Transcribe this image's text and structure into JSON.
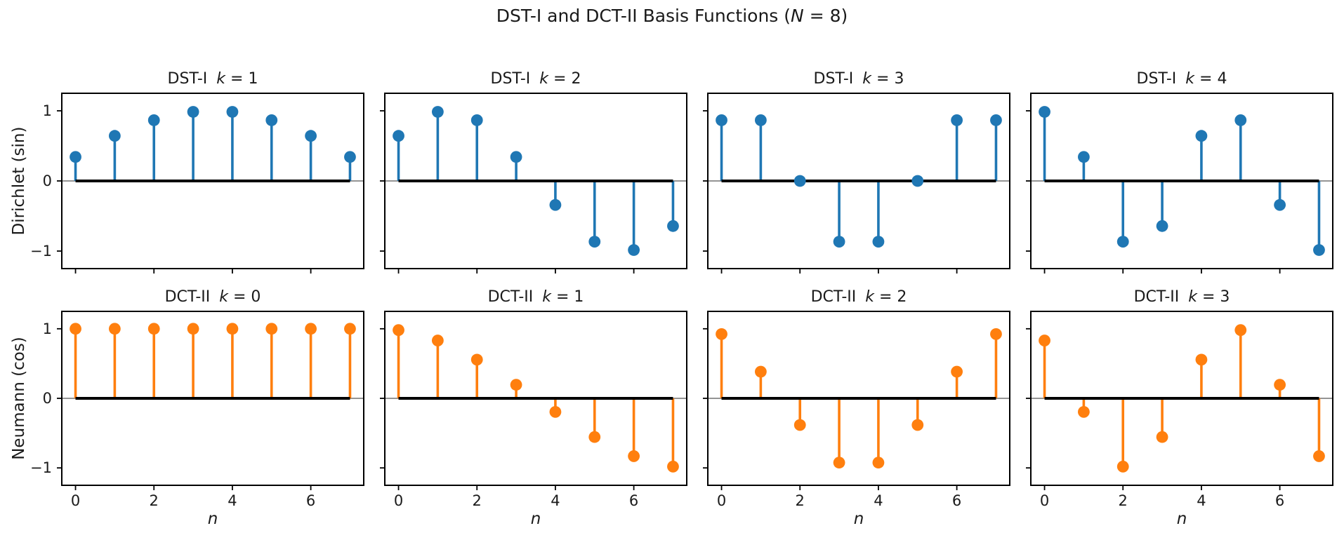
{
  "figure": {
    "suptitle": "DST-I and DCT-II Basis Functions (N = 8)",
    "suptitle_pre": "DST-I and DCT-II Basis Functions (",
    "suptitle_var": "N",
    "suptitle_post": " = 8)",
    "background": "#ffffff",
    "text_color": "#1a1a1a"
  },
  "rows": [
    {
      "ylabel": "Dirichlet (sin)",
      "color": "#1f77b4"
    },
    {
      "ylabel": "Neumann (cos)",
      "color": "#ff7f0e"
    }
  ],
  "xlabel": "n",
  "chart_data": [
    {
      "type": "stem",
      "title": "DST-I  k = 1",
      "title_prefix": "DST-I ",
      "title_var": "k",
      "title_suffix": " = 1",
      "x": [
        0,
        1,
        2,
        3,
        4,
        5,
        6,
        7
      ],
      "values": [
        0.342,
        0.643,
        0.866,
        0.985,
        0.985,
        0.866,
        0.643,
        0.342
      ],
      "color": "#1f77b4",
      "baseline_color": "#000000",
      "xlim": [
        -0.35,
        7.35
      ],
      "ylim": [
        -1.25,
        1.25
      ],
      "xticks": [
        0,
        2,
        4,
        6
      ],
      "yticks": [
        1,
        0,
        -1
      ],
      "xtick_labels": [],
      "ytick_labels": [
        "1",
        "0",
        "−1"
      ],
      "grid": false
    },
    {
      "type": "stem",
      "title": "DST-I  k = 2",
      "title_prefix": "DST-I ",
      "title_var": "k",
      "title_suffix": " = 2",
      "x": [
        0,
        1,
        2,
        3,
        4,
        5,
        6,
        7
      ],
      "values": [
        0.643,
        0.985,
        0.866,
        0.342,
        -0.342,
        -0.866,
        -0.985,
        -0.643
      ],
      "color": "#1f77b4",
      "baseline_color": "#000000",
      "xlim": [
        -0.35,
        7.35
      ],
      "ylim": [
        -1.25,
        1.25
      ],
      "xticks": [
        0,
        2,
        4,
        6
      ],
      "yticks": [
        1,
        0,
        -1
      ],
      "xtick_labels": [],
      "ytick_labels": [],
      "grid": false
    },
    {
      "type": "stem",
      "title": "DST-I  k = 3",
      "title_prefix": "DST-I ",
      "title_var": "k",
      "title_suffix": " = 3",
      "x": [
        0,
        1,
        2,
        3,
        4,
        5,
        6,
        7
      ],
      "values": [
        0.866,
        0.866,
        0.0,
        -0.866,
        -0.866,
        0.0,
        0.866,
        0.866
      ],
      "color": "#1f77b4",
      "baseline_color": "#000000",
      "xlim": [
        -0.35,
        7.35
      ],
      "ylim": [
        -1.25,
        1.25
      ],
      "xticks": [
        0,
        2,
        4,
        6
      ],
      "yticks": [
        1,
        0,
        -1
      ],
      "xtick_labels": [],
      "ytick_labels": [],
      "grid": false
    },
    {
      "type": "stem",
      "title": "DST-I  k = 4",
      "title_prefix": "DST-I ",
      "title_var": "k",
      "title_suffix": " = 4",
      "x": [
        0,
        1,
        2,
        3,
        4,
        5,
        6,
        7
      ],
      "values": [
        0.985,
        0.342,
        -0.866,
        -0.643,
        0.643,
        0.866,
        -0.342,
        -0.985
      ],
      "color": "#1f77b4",
      "baseline_color": "#000000",
      "xlim": [
        -0.35,
        7.35
      ],
      "ylim": [
        -1.25,
        1.25
      ],
      "xticks": [
        0,
        2,
        4,
        6
      ],
      "yticks": [
        1,
        0,
        -1
      ],
      "xtick_labels": [],
      "ytick_labels": [],
      "grid": false
    },
    {
      "type": "stem",
      "title": "DCT-II  k = 0",
      "title_prefix": "DCT-II ",
      "title_var": "k",
      "title_suffix": " = 0",
      "x": [
        0,
        1,
        2,
        3,
        4,
        5,
        6,
        7
      ],
      "values": [
        1.0,
        1.0,
        1.0,
        1.0,
        1.0,
        1.0,
        1.0,
        1.0
      ],
      "color": "#ff7f0e",
      "baseline_color": "#000000",
      "xlim": [
        -0.35,
        7.35
      ],
      "ylim": [
        -1.25,
        1.25
      ],
      "xticks": [
        0,
        2,
        4,
        6
      ],
      "yticks": [
        1,
        0,
        -1
      ],
      "xtick_labels": [
        "0",
        "2",
        "4",
        "6"
      ],
      "ytick_labels": [
        "1",
        "0",
        "−1"
      ],
      "grid": false
    },
    {
      "type": "stem",
      "title": "DCT-II  k = 1",
      "title_prefix": "DCT-II ",
      "title_var": "k",
      "title_suffix": " = 1",
      "x": [
        0,
        1,
        2,
        3,
        4,
        5,
        6,
        7
      ],
      "values": [
        0.981,
        0.831,
        0.556,
        0.195,
        -0.195,
        -0.556,
        -0.831,
        -0.981
      ],
      "color": "#ff7f0e",
      "baseline_color": "#000000",
      "xlim": [
        -0.35,
        7.35
      ],
      "ylim": [
        -1.25,
        1.25
      ],
      "xticks": [
        0,
        2,
        4,
        6
      ],
      "yticks": [
        1,
        0,
        -1
      ],
      "xtick_labels": [
        "0",
        "2",
        "4",
        "6"
      ],
      "ytick_labels": [],
      "grid": false
    },
    {
      "type": "stem",
      "title": "DCT-II  k = 2",
      "title_prefix": "DCT-II ",
      "title_var": "k",
      "title_suffix": " = 2",
      "x": [
        0,
        1,
        2,
        3,
        4,
        5,
        6,
        7
      ],
      "values": [
        0.924,
        0.383,
        -0.383,
        -0.924,
        -0.924,
        -0.383,
        0.383,
        0.924
      ],
      "color": "#ff7f0e",
      "baseline_color": "#000000",
      "xlim": [
        -0.35,
        7.35
      ],
      "ylim": [
        -1.25,
        1.25
      ],
      "xticks": [
        0,
        2,
        4,
        6
      ],
      "yticks": [
        1,
        0,
        -1
      ],
      "xtick_labels": [
        "0",
        "2",
        "4",
        "6"
      ],
      "ytick_labels": [],
      "grid": false
    },
    {
      "type": "stem",
      "title": "DCT-II  k = 3",
      "title_prefix": "DCT-II ",
      "title_var": "k",
      "title_suffix": " = 3",
      "x": [
        0,
        1,
        2,
        3,
        4,
        5,
        6,
        7
      ],
      "values": [
        0.831,
        -0.195,
        -0.981,
        -0.556,
        0.556,
        0.981,
        0.195,
        -0.831
      ],
      "color": "#ff7f0e",
      "baseline_color": "#000000",
      "xlim": [
        -0.35,
        7.35
      ],
      "ylim": [
        -1.25,
        1.25
      ],
      "xticks": [
        0,
        2,
        4,
        6
      ],
      "yticks": [
        1,
        0,
        -1
      ],
      "xtick_labels": [
        "0",
        "2",
        "4",
        "6"
      ],
      "ytick_labels": [],
      "grid": false
    }
  ]
}
